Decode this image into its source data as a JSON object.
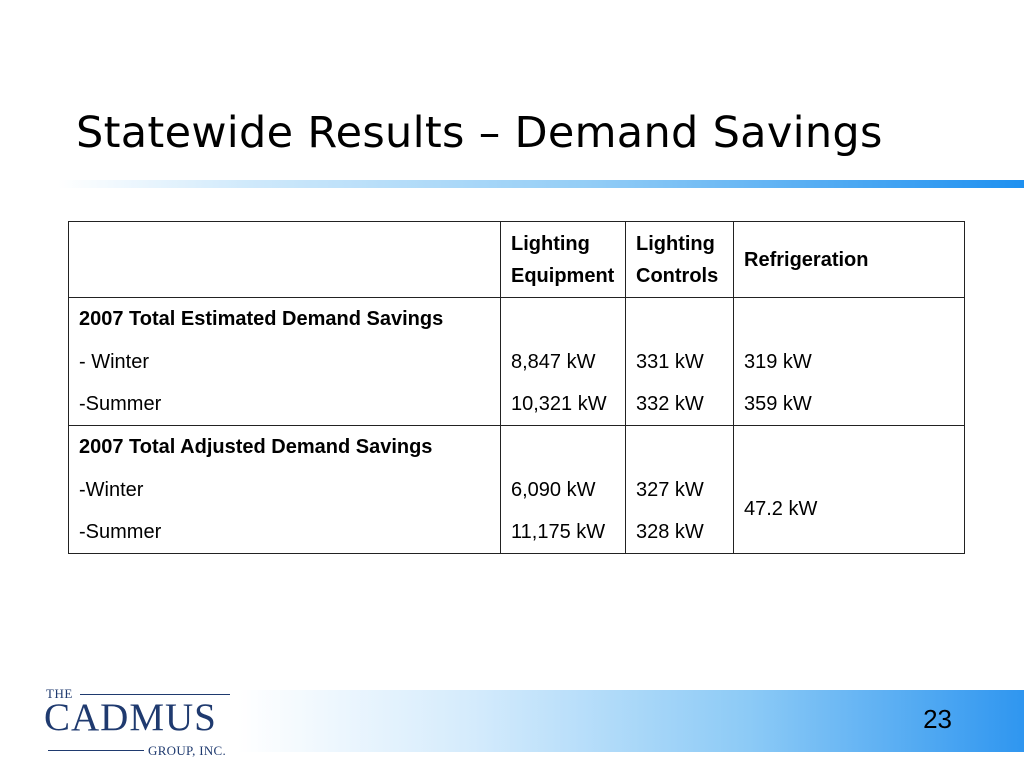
{
  "slide": {
    "title": "Statewide Results – Demand Savings",
    "page_number": "23"
  },
  "table": {
    "headers": [
      "",
      "Lighting Equipment",
      "Lighting Controls",
      "Refrigeration"
    ],
    "header_lines": {
      "lighting_equipment": [
        "Lighting",
        "Equipment"
      ],
      "lighting_controls": [
        "Lighting",
        "Controls"
      ]
    },
    "estimated": {
      "label": "2007 Total Estimated Demand Savings",
      "rows": [
        {
          "label": "- Winter",
          "lighting_equipment": "8,847 kW",
          "lighting_controls": "331 kW",
          "refrigeration": "319 kW"
        },
        {
          "label": "-Summer",
          "lighting_equipment": "10,321 kW",
          "lighting_controls": "332 kW",
          "refrigeration": "359 kW"
        }
      ]
    },
    "adjusted": {
      "label": "2007 Total Adjusted Demand Savings",
      "rows": [
        {
          "label": "-Winter",
          "lighting_equipment": "6,090 kW",
          "lighting_controls": "327 kW"
        },
        {
          "label": "-Summer",
          "lighting_equipment": "11,175 kW",
          "lighting_controls": "328 kW"
        }
      ],
      "refrigeration_combined": "47.2 kW"
    }
  },
  "logo": {
    "the": "THE",
    "name": "CADMUS",
    "sub": "GROUP, INC."
  }
}
